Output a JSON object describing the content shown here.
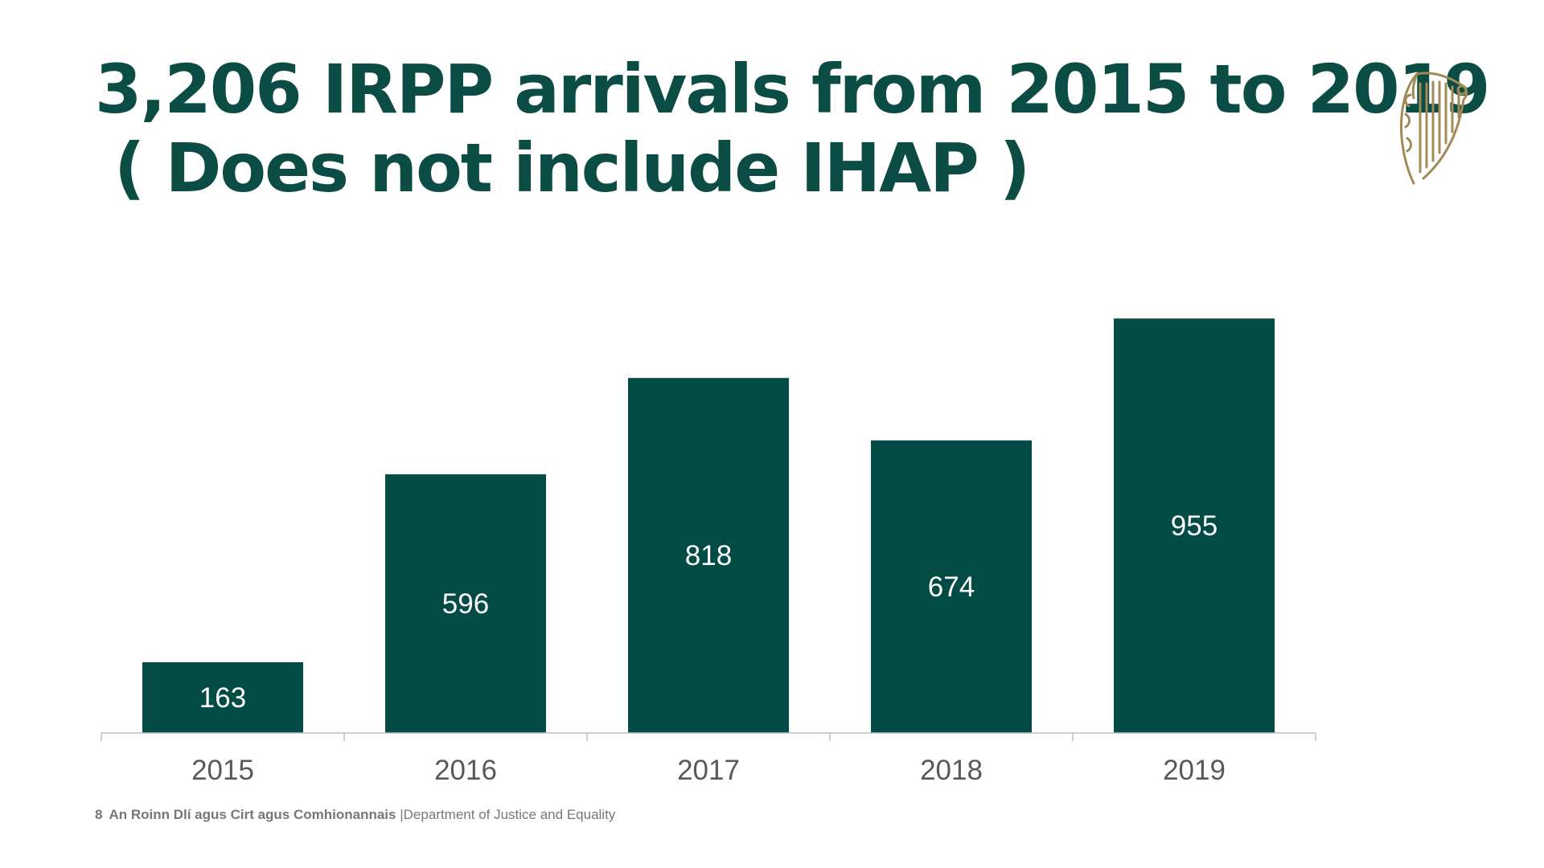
{
  "slide": {
    "title_line1": "3,206 IRPP arrivals from 2015 to 2019",
    "title_line2": "( Does not include IHAP )",
    "page_number": "8",
    "footer_irish": "An Roinn Dlí agus Cirt agus Comhionannais",
    "footer_separator": "|",
    "footer_english": "Department of Justice and Equality",
    "logo_icon": "harp-emblem-icon"
  },
  "colors": {
    "accent": "#0b4d44",
    "bar": "#034c45",
    "bar_label": "#ffffff",
    "axis": "#bfbfbf",
    "tick_label": "#595959",
    "footer": "#777777",
    "logo": "#a08a55"
  },
  "chart_data": {
    "type": "bar",
    "title": "3,206 IRPP arrivals from 2015 to 2019",
    "categories": [
      "2015",
      "2016",
      "2017",
      "2018",
      "2019"
    ],
    "values": [
      163,
      596,
      818,
      674,
      955
    ],
    "data_labels": [
      "163",
      "596",
      "818",
      "674",
      "955"
    ],
    "xlabel": "",
    "ylabel": "",
    "ylim": [
      0,
      1000
    ],
    "grid": false,
    "legend": "none"
  }
}
